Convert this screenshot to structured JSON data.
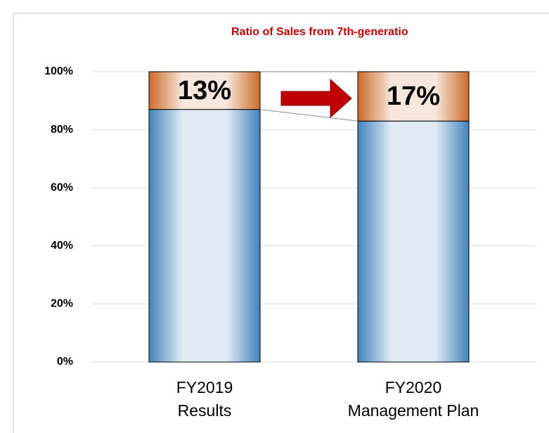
{
  "chart_data": {
    "type": "stacked_bar",
    "title": "Ratio of Sales from 7th-generatio",
    "categories": [
      [
        "FY2019",
        "Results"
      ],
      [
        "FY2020",
        "Management Plan"
      ]
    ],
    "series": [
      {
        "color": "#2e75b6",
        "values": [
          87,
          83
        ]
      },
      {
        "color": "#c55a11",
        "values": [
          13,
          17
        ],
        "value_labels": [
          "13%",
          "17%"
        ]
      }
    ],
    "ylim": [
      0,
      100
    ],
    "yticks": [
      {
        "value": 0,
        "label": "0%"
      },
      {
        "value": 20,
        "label": "20%"
      },
      {
        "value": 40,
        "label": "40%"
      },
      {
        "value": 60,
        "label": "60%"
      },
      {
        "value": 80,
        "label": "80%"
      },
      {
        "value": 100,
        "label": "100%"
      }
    ],
    "grid": true
  }
}
